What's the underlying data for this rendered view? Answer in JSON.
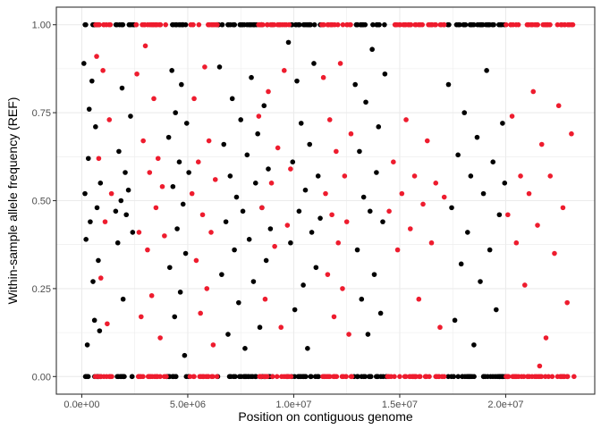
{
  "chart_data": {
    "type": "scatter",
    "title": "",
    "xlabel": "Position on contiguous genome",
    "ylabel": "Within-sample allele frequency (REF)",
    "xlim": [
      -1200000,
      24200000
    ],
    "ylim": [
      -0.05,
      1.05
    ],
    "x_ticks": [
      0,
      5000000,
      10000000,
      15000000,
      20000000
    ],
    "x_tick_labels": [
      "0.0e+00",
      "5.0e+06",
      "1.0e+07",
      "1.5e+07",
      "2.0e+07"
    ],
    "y_ticks": [
      0,
      0.25,
      0.5,
      0.75,
      1
    ],
    "y_tick_labels": [
      "0.00",
      "0.25",
      "0.50",
      "0.75",
      "1.00"
    ],
    "grid": true,
    "legend": "none",
    "theme": "bw",
    "colors": {
      "black": "#000000",
      "red": "#ee1c2e",
      "grid": "#ebebeb",
      "border": "#333333"
    },
    "series": [
      {
        "color": "#000000",
        "regions": [
          [
            0,
            900000
          ],
          [
            1500000,
            2500000
          ],
          [
            4000000,
            5100000
          ],
          [
            6400000,
            9000000
          ],
          [
            9700000,
            11300000
          ],
          [
            12800000,
            14400000
          ],
          [
            17200000,
            20000000
          ]
        ],
        "points": [
          [
            100000,
            0.89
          ],
          [
            150000,
            0.52
          ],
          [
            200000,
            0.39
          ],
          [
            260000,
            0.09
          ],
          [
            310000,
            0.62
          ],
          [
            350000,
            0.76
          ],
          [
            400000,
            0.44
          ],
          [
            480000,
            0.84
          ],
          [
            530000,
            0.27
          ],
          [
            600000,
            0.16
          ],
          [
            650000,
            0.71
          ],
          [
            720000,
            0.48
          ],
          [
            780000,
            0.33
          ],
          [
            840000,
            0.13
          ],
          [
            880000,
            0.55
          ],
          [
            1600000,
            0.47
          ],
          [
            1700000,
            0.38
          ],
          [
            1750000,
            0.64
          ],
          [
            1850000,
            0.5
          ],
          [
            1900000,
            0.82
          ],
          [
            1950000,
            0.22
          ],
          [
            2050000,
            0.58
          ],
          [
            2100000,
            0.46
          ],
          [
            2200000,
            0.53
          ],
          [
            2300000,
            0.74
          ],
          [
            2400000,
            0.41
          ],
          [
            4100000,
            0.68
          ],
          [
            4150000,
            0.31
          ],
          [
            4250000,
            0.87
          ],
          [
            4300000,
            0.54
          ],
          [
            4380000,
            0.17
          ],
          [
            4420000,
            0.75
          ],
          [
            4500000,
            0.42
          ],
          [
            4600000,
            0.61
          ],
          [
            4650000,
            0.24
          ],
          [
            4700000,
            0.83
          ],
          [
            4780000,
            0.49
          ],
          [
            4850000,
            0.06
          ],
          [
            4900000,
            0.35
          ],
          [
            4950000,
            0.72
          ],
          [
            5050000,
            0.58
          ],
          [
            6500000,
            0.88
          ],
          [
            6600000,
            0.29
          ],
          [
            6700000,
            0.66
          ],
          [
            6800000,
            0.44
          ],
          [
            6900000,
            0.12
          ],
          [
            7000000,
            0.57
          ],
          [
            7100000,
            0.79
          ],
          [
            7200000,
            0.36
          ],
          [
            7300000,
            0.51
          ],
          [
            7400000,
            0.21
          ],
          [
            7500000,
            0.73
          ],
          [
            7600000,
            0.47
          ],
          [
            7700000,
            0.08
          ],
          [
            7800000,
            0.63
          ],
          [
            7900000,
            0.39
          ],
          [
            8000000,
            0.85
          ],
          [
            8100000,
            0.27
          ],
          [
            8200000,
            0.55
          ],
          [
            8300000,
            0.69
          ],
          [
            8400000,
            0.14
          ],
          [
            8500000,
            0.48
          ],
          [
            8600000,
            0.77
          ],
          [
            8700000,
            0.33
          ],
          [
            8800000,
            0.59
          ],
          [
            8900000,
            0.42
          ],
          [
            9750000,
            0.95
          ],
          [
            9850000,
            0.38
          ],
          [
            9950000,
            0.61
          ],
          [
            10050000,
            0.19
          ],
          [
            10150000,
            0.84
          ],
          [
            10250000,
            0.47
          ],
          [
            10350000,
            0.72
          ],
          [
            10450000,
            0.26
          ],
          [
            10550000,
            0.53
          ],
          [
            10650000,
            0.08
          ],
          [
            10750000,
            0.66
          ],
          [
            10850000,
            0.41
          ],
          [
            10950000,
            0.89
          ],
          [
            11050000,
            0.31
          ],
          [
            11150000,
            0.57
          ],
          [
            11250000,
            0.45
          ],
          [
            12900000,
            0.83
          ],
          [
            13000000,
            0.36
          ],
          [
            13100000,
            0.64
          ],
          [
            13200000,
            0.22
          ],
          [
            13300000,
            0.51
          ],
          [
            13400000,
            0.78
          ],
          [
            13500000,
            0.12
          ],
          [
            13600000,
            0.47
          ],
          [
            13700000,
            0.93
          ],
          [
            13800000,
            0.29
          ],
          [
            13900000,
            0.58
          ],
          [
            14000000,
            0.71
          ],
          [
            14100000,
            0.18
          ],
          [
            14200000,
            0.44
          ],
          [
            14300000,
            0.86
          ],
          [
            17300000,
            0.83
          ],
          [
            17450000,
            0.48
          ],
          [
            17600000,
            0.16
          ],
          [
            17750000,
            0.63
          ],
          [
            17900000,
            0.32
          ],
          [
            18050000,
            0.75
          ],
          [
            18200000,
            0.41
          ],
          [
            18350000,
            0.57
          ],
          [
            18500000,
            0.09
          ],
          [
            18650000,
            0.68
          ],
          [
            18800000,
            0.27
          ],
          [
            18950000,
            0.52
          ],
          [
            19100000,
            0.87
          ],
          [
            19250000,
            0.36
          ],
          [
            19400000,
            0.61
          ],
          [
            19550000,
            0.19
          ],
          [
            19700000,
            0.46
          ],
          [
            19850000,
            0.72
          ],
          [
            19950000,
            0.55
          ]
        ]
      },
      {
        "color": "#ee1c2e",
        "regions": [
          [
            600000,
            1500000
          ],
          [
            2500000,
            4000000
          ],
          [
            5100000,
            6400000
          ],
          [
            8300000,
            9900000
          ],
          [
            11300000,
            12800000
          ],
          [
            14400000,
            17200000
          ],
          [
            20000000,
            23300000
          ]
        ],
        "points": [
          [
            700000,
            0.91
          ],
          [
            800000,
            0.62
          ],
          [
            900000,
            0.28
          ],
          [
            1000000,
            0.87
          ],
          [
            1100000,
            0.44
          ],
          [
            1200000,
            0.15
          ],
          [
            1300000,
            0.73
          ],
          [
            1400000,
            0.52
          ],
          [
            2600000,
            0.86
          ],
          [
            2700000,
            0.41
          ],
          [
            2800000,
            0.17
          ],
          [
            2900000,
            0.67
          ],
          [
            3000000,
            0.94
          ],
          [
            3100000,
            0.36
          ],
          [
            3200000,
            0.58
          ],
          [
            3300000,
            0.23
          ],
          [
            3400000,
            0.79
          ],
          [
            3500000,
            0.48
          ],
          [
            3600000,
            0.62
          ],
          [
            3700000,
            0.11
          ],
          [
            3800000,
            0.54
          ],
          [
            3900000,
            0.4
          ],
          [
            5200000,
            0.52
          ],
          [
            5300000,
            0.79
          ],
          [
            5400000,
            0.33
          ],
          [
            5500000,
            0.61
          ],
          [
            5600000,
            0.18
          ],
          [
            5700000,
            0.46
          ],
          [
            5800000,
            0.88
          ],
          [
            5900000,
            0.25
          ],
          [
            6000000,
            0.67
          ],
          [
            6100000,
            0.41
          ],
          [
            6200000,
            0.09
          ],
          [
            6300000,
            0.56
          ],
          [
            8350000,
            0.74
          ],
          [
            8500000,
            0.48
          ],
          [
            8650000,
            0.22
          ],
          [
            8800000,
            0.81
          ],
          [
            8950000,
            0.55
          ],
          [
            9100000,
            0.37
          ],
          [
            9250000,
            0.65
          ],
          [
            9400000,
            0.14
          ],
          [
            9550000,
            0.87
          ],
          [
            9700000,
            0.43
          ],
          [
            9850000,
            0.59
          ],
          [
            11400000,
            0.85
          ],
          [
            11500000,
            0.52
          ],
          [
            11600000,
            0.29
          ],
          [
            11700000,
            0.73
          ],
          [
            11800000,
            0.46
          ],
          [
            11900000,
            0.17
          ],
          [
            12000000,
            0.64
          ],
          [
            12100000,
            0.38
          ],
          [
            12200000,
            0.89
          ],
          [
            12300000,
            0.25
          ],
          [
            12400000,
            0.57
          ],
          [
            12500000,
            0.44
          ],
          [
            12600000,
            0.12
          ],
          [
            12700000,
            0.69
          ],
          [
            14500000,
            0.47
          ],
          [
            14700000,
            0.61
          ],
          [
            14900000,
            0.36
          ],
          [
            15100000,
            0.52
          ],
          [
            15300000,
            0.73
          ],
          [
            15500000,
            0.42
          ],
          [
            15700000,
            0.57
          ],
          [
            15900000,
            0.22
          ],
          [
            16100000,
            0.49
          ],
          [
            16300000,
            0.67
          ],
          [
            16500000,
            0.38
          ],
          [
            16700000,
            0.55
          ],
          [
            16900000,
            0.14
          ],
          [
            17100000,
            0.51
          ],
          [
            20100000,
            0.46
          ],
          [
            20300000,
            0.74
          ],
          [
            20500000,
            0.38
          ],
          [
            20700000,
            0.57
          ],
          [
            20900000,
            0.26
          ],
          [
            21100000,
            0.52
          ],
          [
            21300000,
            0.81
          ],
          [
            21500000,
            0.43
          ],
          [
            21700000,
            0.66
          ],
          [
            21900000,
            0.11
          ],
          [
            22100000,
            0.57
          ],
          [
            22300000,
            0.35
          ],
          [
            22500000,
            0.77
          ],
          [
            22700000,
            0.48
          ],
          [
            22900000,
            0.21
          ],
          [
            23100000,
            0.69
          ],
          [
            21600000,
            0.03
          ]
        ]
      }
    ]
  }
}
